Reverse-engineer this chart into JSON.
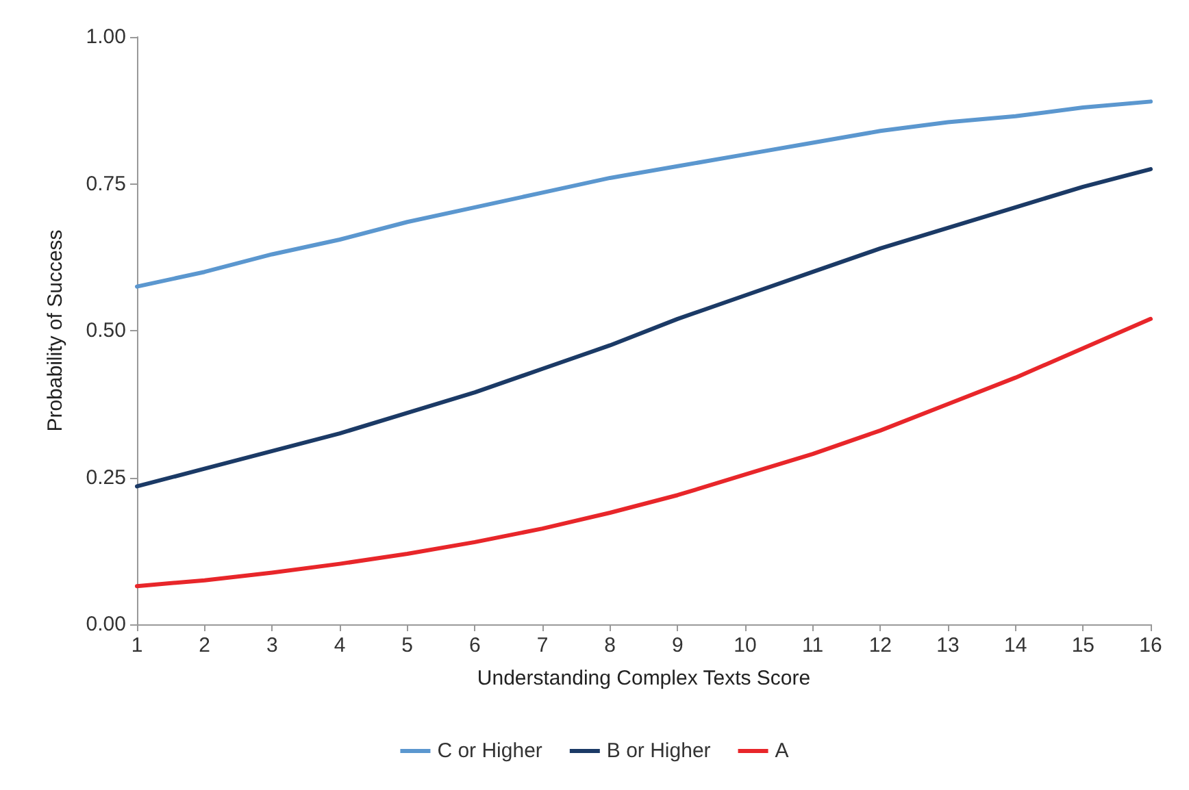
{
  "chart_data": {
    "type": "line",
    "xlabel": "Understanding Complex Texts Score",
    "ylabel": "Probability of Success",
    "x": [
      1,
      2,
      3,
      4,
      5,
      6,
      7,
      8,
      9,
      10,
      11,
      12,
      13,
      14,
      15,
      16
    ],
    "series": [
      {
        "name": "C or Higher",
        "color": "#5b97cf",
        "values": [
          0.575,
          0.6,
          0.63,
          0.655,
          0.685,
          0.71,
          0.735,
          0.76,
          0.78,
          0.8,
          0.82,
          0.84,
          0.855,
          0.865,
          0.88,
          0.89
        ]
      },
      {
        "name": "B or Higher",
        "color": "#1b3a66",
        "values": [
          0.235,
          0.265,
          0.295,
          0.325,
          0.36,
          0.395,
          0.435,
          0.475,
          0.52,
          0.56,
          0.6,
          0.64,
          0.675,
          0.71,
          0.745,
          0.775
        ]
      },
      {
        "name": "A",
        "color": "#e8262a",
        "values": [
          0.065,
          0.075,
          0.088,
          0.103,
          0.12,
          0.14,
          0.163,
          0.19,
          0.22,
          0.255,
          0.29,
          0.33,
          0.375,
          0.42,
          0.47,
          0.52
        ]
      }
    ],
    "xlim": [
      1,
      16
    ],
    "xticks": [
      1,
      2,
      3,
      4,
      5,
      6,
      7,
      8,
      9,
      10,
      11,
      12,
      13,
      14,
      15,
      16
    ],
    "ylim": [
      0,
      1
    ],
    "yticks": [
      {
        "value": 0,
        "label": "0.00"
      },
      {
        "value": 0.25,
        "label": "0.25"
      },
      {
        "value": 0.5,
        "label": "0.50"
      },
      {
        "value": 0.75,
        "label": "0.75"
      },
      {
        "value": 1,
        "label": "1.00"
      }
    ],
    "grid": false,
    "legend": "bottom",
    "marker": "none",
    "line_style": "solid"
  }
}
